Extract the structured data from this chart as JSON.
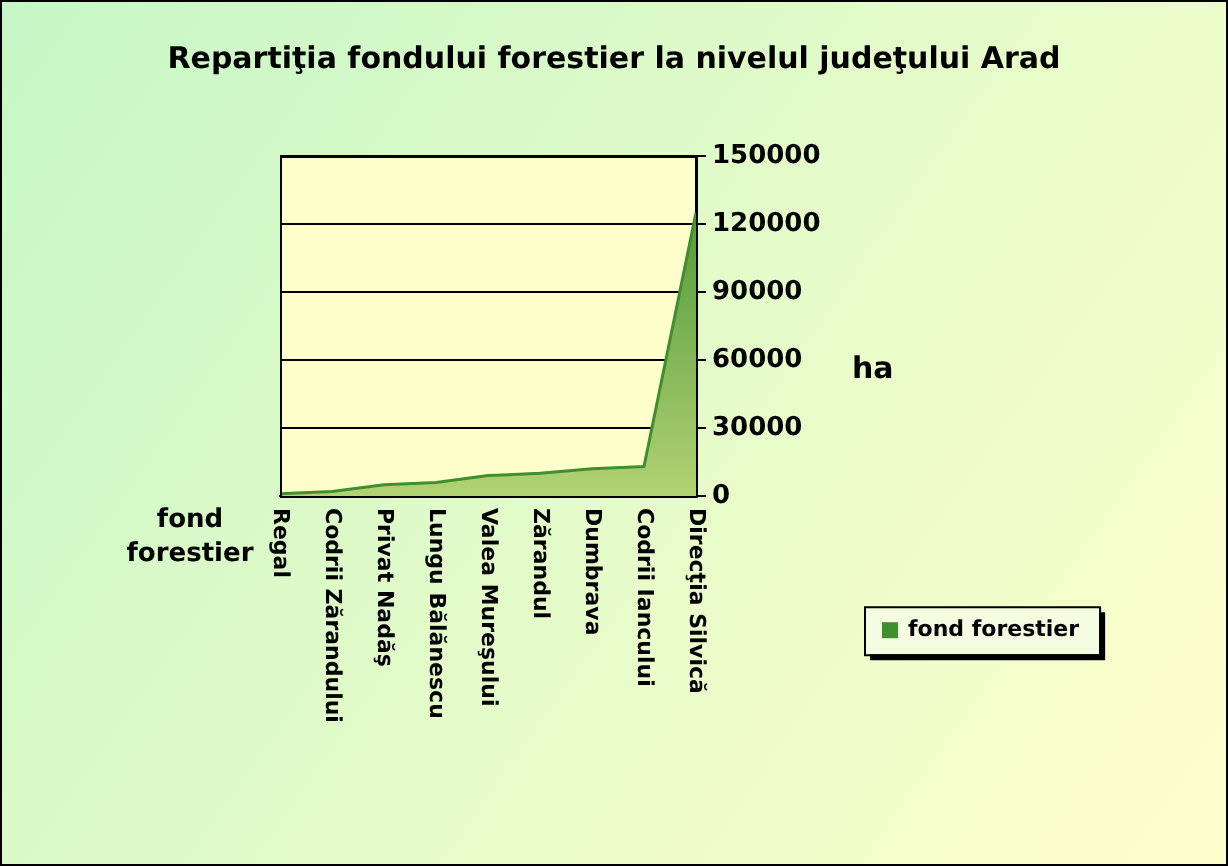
{
  "chart_data": {
    "type": "area",
    "title": "Repartiţia fondului forestier la nivelul judeţului Arad",
    "ylabel": "ha",
    "categories": [
      "Regal",
      "Codrii Zărandului",
      "Privat Nadăş",
      "Lungu Bălănescu",
      "Valea Mureşului",
      "Zărandul",
      "Dumbrava",
      "Codrii Iancului",
      "Direcţia Silvică"
    ],
    "series": [
      {
        "name": "fond forestier",
        "color": "#3f8f2f",
        "values": [
          1000,
          2000,
          5000,
          6000,
          9000,
          10000,
          12000,
          13000,
          125000
        ]
      }
    ],
    "ylim": [
      0,
      150000
    ],
    "yticks": [
      0,
      30000,
      60000,
      90000,
      120000,
      150000
    ],
    "grid": "y",
    "legend": "right"
  }
}
